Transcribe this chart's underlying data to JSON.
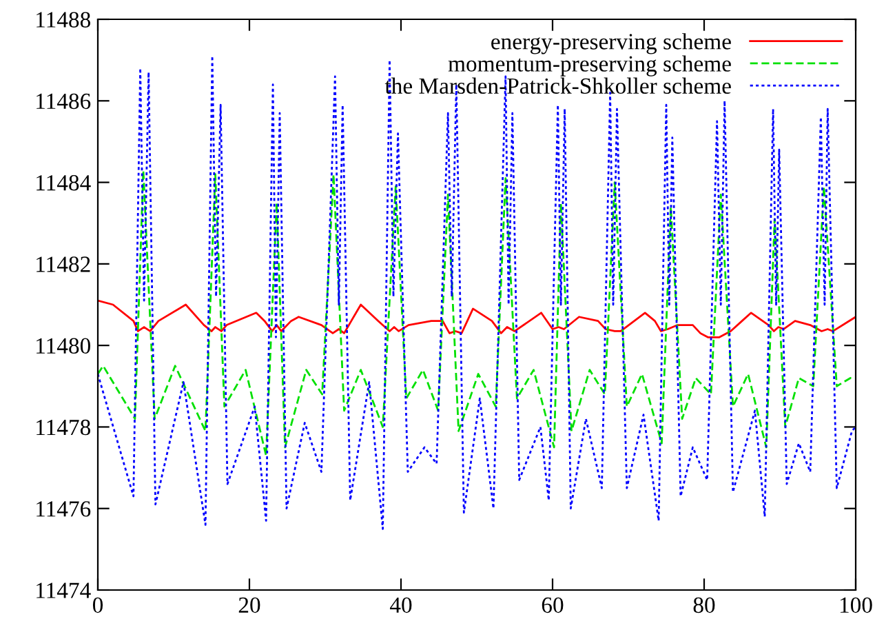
{
  "chart_data": {
    "type": "line",
    "xlim": [
      0,
      100
    ],
    "xticks": [
      0,
      20,
      40,
      60,
      80,
      100
    ],
    "ylim": [
      11474,
      11488
    ],
    "yticks": [
      11474,
      11476,
      11478,
      11480,
      11482,
      11484,
      11486,
      11488
    ],
    "grid": false,
    "legend": "top right",
    "series": [
      {
        "name": "energy-preserving scheme",
        "color": "#ff0000",
        "line_style": "solid",
        "x": [
          0,
          2,
          4.7,
          5.3,
          6.1,
          6.9,
          8,
          11.6,
          14,
          15,
          15.5,
          16.3,
          17,
          20.9,
          22,
          23,
          23.6,
          24.2,
          25.5,
          26.5,
          29.5,
          31,
          31.8,
          32.5,
          34.7,
          37,
          38.5,
          39.1,
          39.7,
          41,
          44,
          45.5,
          46.4,
          47.2,
          48,
          49.5,
          52,
          53.2,
          54,
          55,
          58.5,
          60,
          60.8,
          61.5,
          63.5,
          66,
          67,
          68.2,
          69,
          72.2,
          73.5,
          74.3,
          75.2,
          76.5,
          78.5,
          79.5,
          80.5,
          82,
          83.5,
          85,
          86.2,
          88.5,
          89.2,
          89.8,
          90.5,
          92,
          94,
          95.5,
          96.3,
          97,
          100
        ],
        "values": [
          11481.1,
          11481.0,
          11480.6,
          11480.35,
          11480.45,
          11480.35,
          11480.6,
          11481.0,
          11480.5,
          11480.35,
          11480.45,
          11480.35,
          11480.5,
          11480.8,
          11480.6,
          11480.35,
          11480.5,
          11480.35,
          11480.6,
          11480.7,
          11480.5,
          11480.3,
          11480.4,
          11480.3,
          11481.0,
          11480.6,
          11480.35,
          11480.45,
          11480.35,
          11480.5,
          11480.6,
          11480.6,
          11480.3,
          11480.35,
          11480.3,
          11480.9,
          11480.6,
          11480.3,
          11480.45,
          11480.35,
          11480.8,
          11480.4,
          11480.45,
          11480.4,
          11480.7,
          11480.6,
          11480.4,
          11480.35,
          11480.35,
          11480.8,
          11480.6,
          11480.35,
          11480.4,
          11480.5,
          11480.5,
          11480.3,
          11480.2,
          11480.2,
          11480.35,
          11480.6,
          11480.8,
          11480.5,
          11480.35,
          11480.45,
          11480.4,
          11480.6,
          11480.5,
          11480.35,
          11480.4,
          11480.35,
          11480.7
        ]
      },
      {
        "name": "momentum-preserving scheme",
        "color": "#00e000",
        "line_style": "dashed",
        "x": [
          0,
          0.7,
          4.9,
          6.0,
          7.5,
          10.2,
          14.2,
          15.5,
          16.7,
          19.5,
          22.2,
          23.6,
          24.7,
          27.5,
          29.6,
          31.1,
          32.5,
          34.7,
          37.6,
          39.3,
          40.7,
          42.9,
          44.9,
          46.2,
          47.6,
          50.2,
          52.5,
          53.8,
          55.3,
          57.5,
          60.2,
          61.1,
          62.5,
          64.9,
          66.9,
          68.2,
          69.8,
          71.8,
          74.4,
          75.6,
          77.1,
          78.9,
          80.9,
          82.2,
          83.8,
          85.8,
          88.2,
          89.3,
          90.7,
          92.5,
          94.4,
          95.8,
          97.5,
          99.3,
          100
        ],
        "values": [
          11479.3,
          11479.5,
          11478.2,
          11484.3,
          11478.2,
          11479.5,
          11477.9,
          11484.2,
          11478.5,
          11479.4,
          11477.3,
          11483.5,
          11477.5,
          11479.4,
          11478.8,
          11484.2,
          11478.4,
          11479.4,
          11478.0,
          11483.9,
          11478.7,
          11479.4,
          11478.4,
          11483.7,
          11477.9,
          11479.3,
          11478.5,
          11484.1,
          11478.7,
          11479.4,
          11477.5,
          11483.5,
          11477.9,
          11479.4,
          11478.8,
          11484.0,
          11478.5,
          11479.3,
          11477.6,
          11483.4,
          11478.2,
          11479.2,
          11478.8,
          11483.7,
          11478.5,
          11479.3,
          11477.5,
          11483.1,
          11478.0,
          11479.2,
          11479.0,
          11483.9,
          11479.0,
          11479.2,
          11479.2
        ]
      },
      {
        "name": "the Marsden-Patrick-Shkoller scheme",
        "color": "#0000ff",
        "line_style": "dotted",
        "x": [
          0,
          4.7,
          5.6,
          6.1,
          6.7,
          7.6,
          11.3,
          14.2,
          15.1,
          15.6,
          16.2,
          17.1,
          20.7,
          22.2,
          23.1,
          23.5,
          24.0,
          24.9,
          27.3,
          29.5,
          31.3,
          31.8,
          32.3,
          33.3,
          35.8,
          37.6,
          38.5,
          39.0,
          39.6,
          40.9,
          43.1,
          44.7,
          46.2,
          46.7,
          47.3,
          48.3,
          50.4,
          52.2,
          53.8,
          54.2,
          54.7,
          55.6,
          58.4,
          59.5,
          60.7,
          61.1,
          61.6,
          62.4,
          64.4,
          66.5,
          67.6,
          68.0,
          68.5,
          69.8,
          72.0,
          74.0,
          75.0,
          75.4,
          75.8,
          76.9,
          78.5,
          80.4,
          81.7,
          82.2,
          82.7,
          83.8,
          86.7,
          88.0,
          89.1,
          89.5,
          89.9,
          90.9,
          92.5,
          94.0,
          95.4,
          95.9,
          96.3,
          97.5,
          99.5,
          100
        ],
        "values": [
          11479.3,
          11476.3,
          11486.8,
          11481.1,
          11486.7,
          11476.1,
          11479.1,
          11475.6,
          11487.1,
          11481.2,
          11485.9,
          11476.6,
          11478.5,
          11475.7,
          11486.4,
          11480.2,
          11485.7,
          11476.0,
          11478.1,
          11476.9,
          11486.6,
          11481.0,
          11485.9,
          11476.2,
          11479.1,
          11475.5,
          11487.0,
          11481.2,
          11485.2,
          11476.9,
          11477.5,
          11477.1,
          11485.7,
          11481.2,
          11486.4,
          11475.9,
          11478.7,
          11476.0,
          11486.6,
          11481.0,
          11485.7,
          11476.7,
          11478.0,
          11476.2,
          11485.9,
          11481.0,
          11485.8,
          11476.0,
          11478.2,
          11476.5,
          11486.2,
          11481.0,
          11485.8,
          11476.5,
          11478.3,
          11475.7,
          11485.9,
          11481.0,
          11485.1,
          11476.3,
          11477.5,
          11476.7,
          11485.5,
          11481.0,
          11486.0,
          11476.4,
          11478.4,
          11475.8,
          11485.8,
          11481.0,
          11484.8,
          11476.6,
          11477.6,
          11476.9,
          11485.6,
          11481.0,
          11485.8,
          11476.5,
          11477.9,
          11478.0
        ]
      }
    ]
  }
}
